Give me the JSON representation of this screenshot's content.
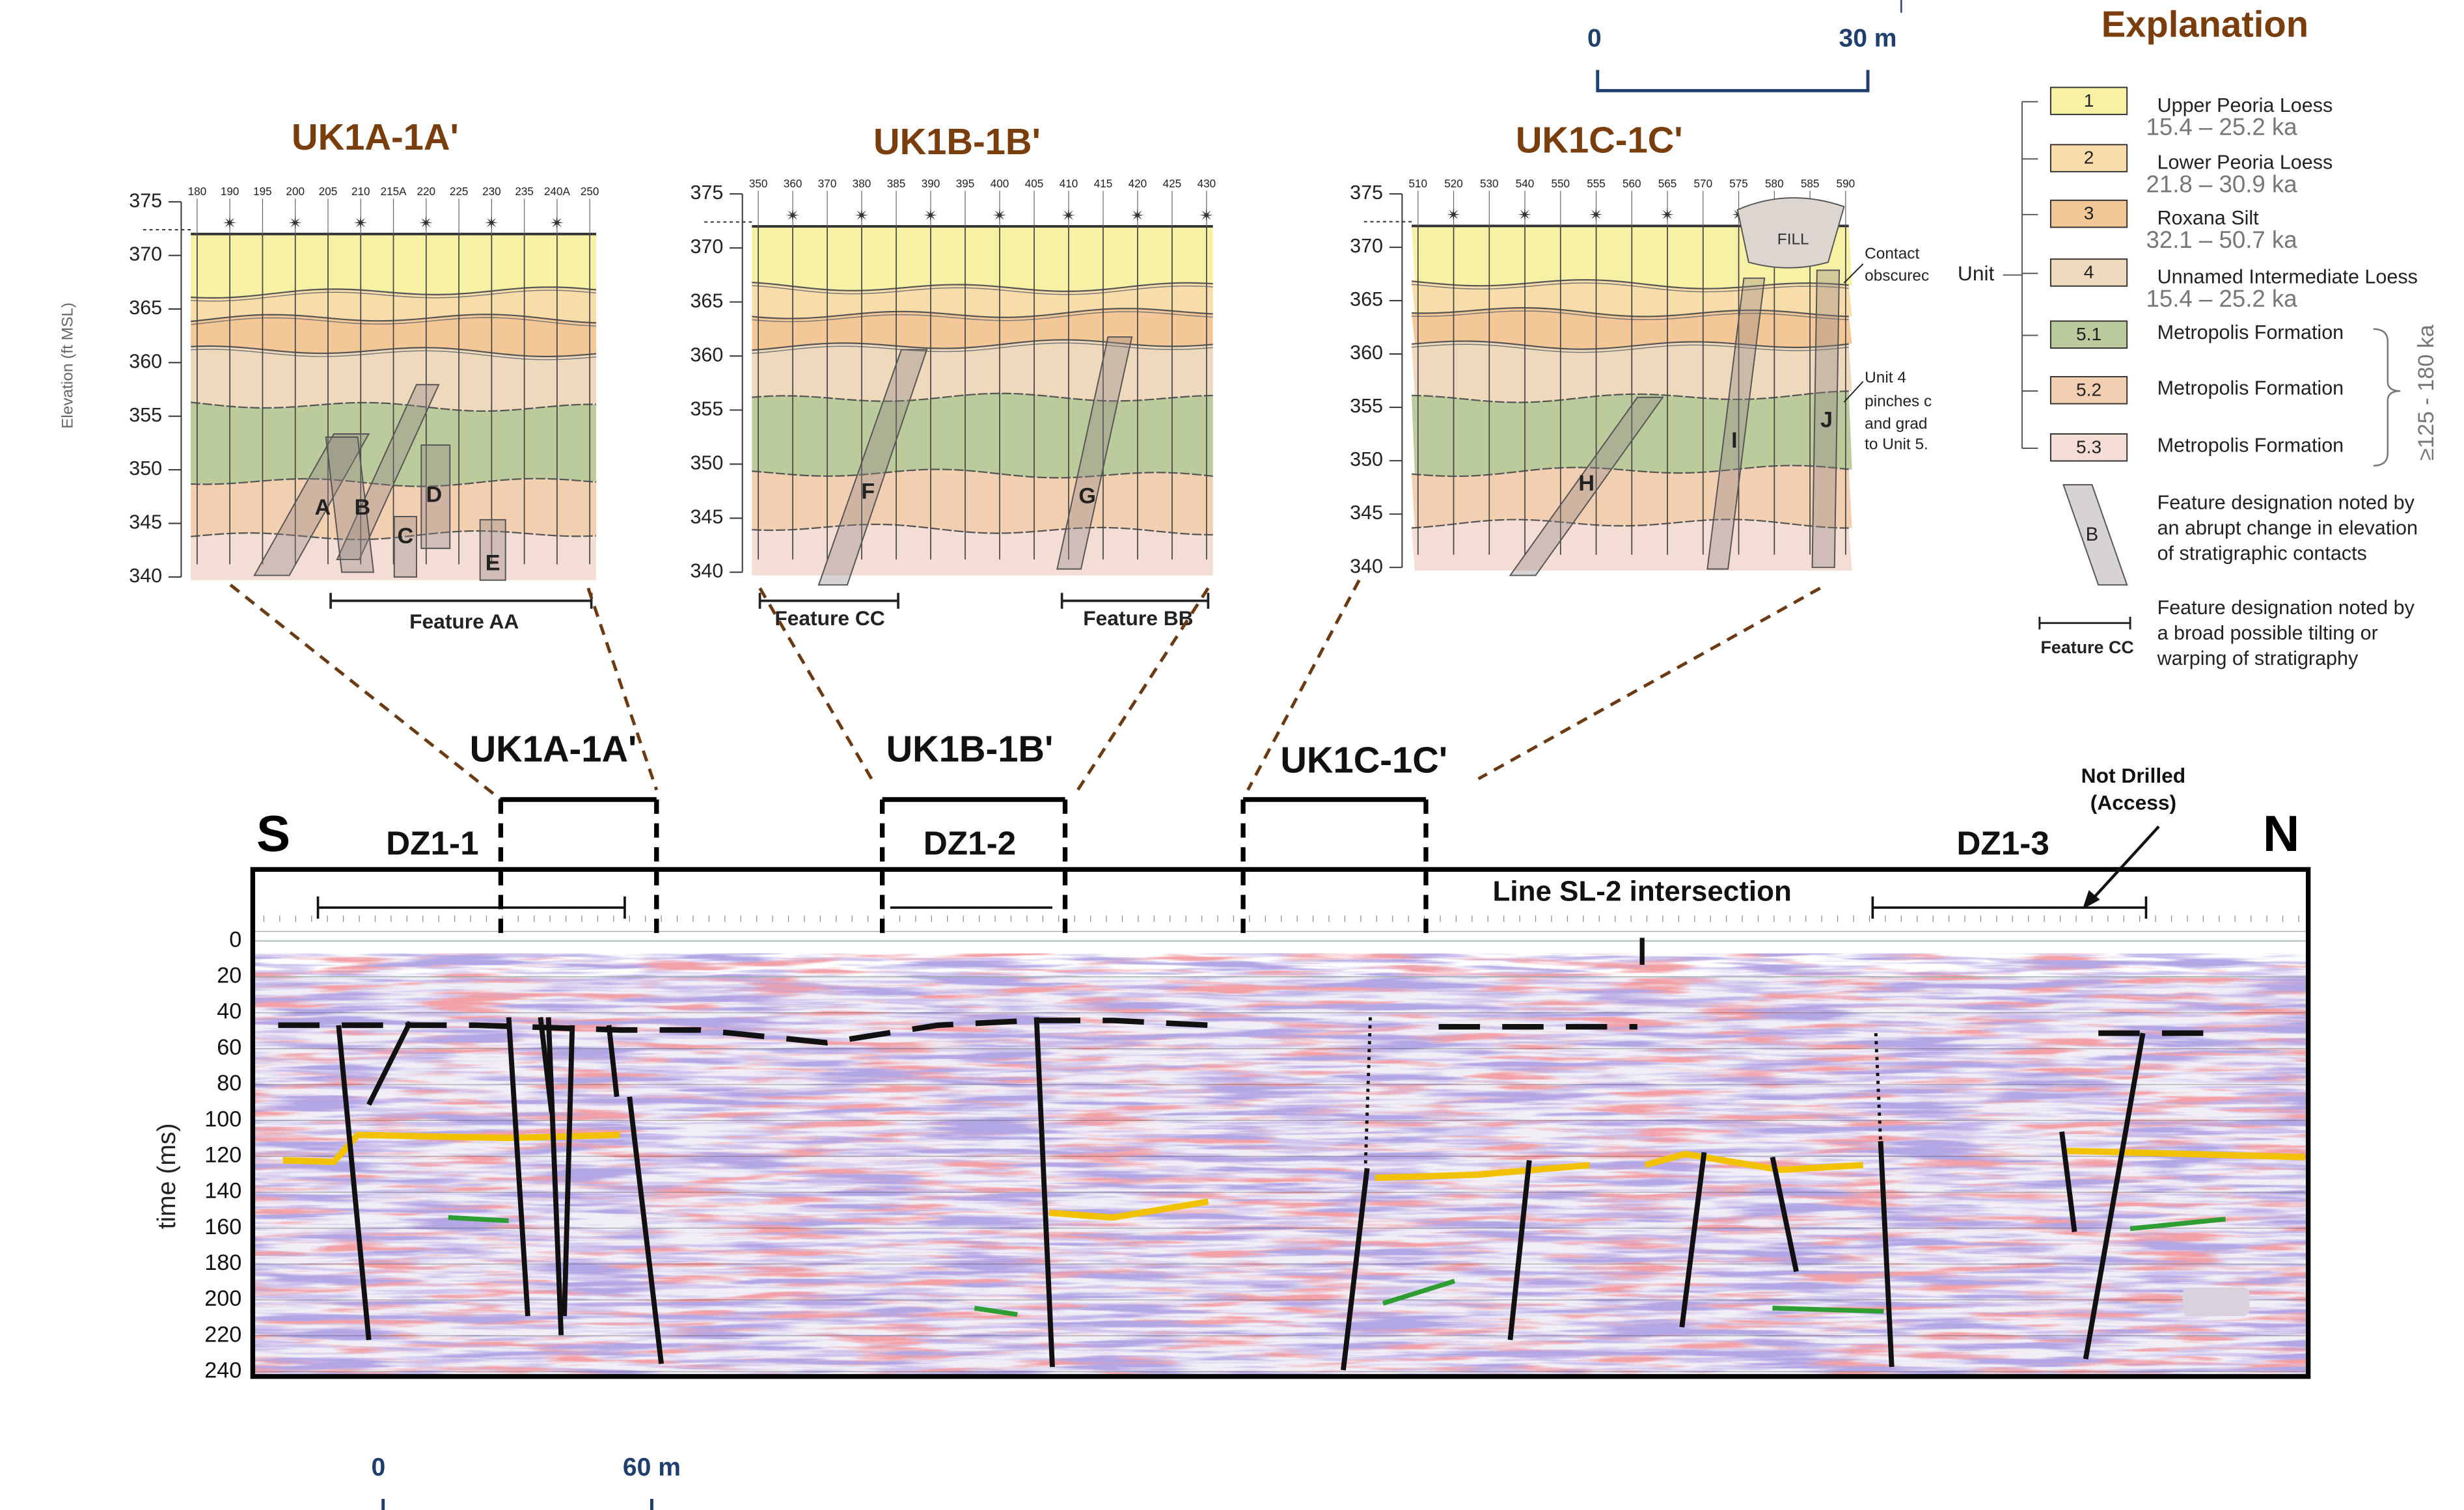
{
  "panels": [
    {
      "title": "UK1A-1A'",
      "y_label": "Elevation (ft MSL)",
      "elevation_ticks": [
        "375",
        "370",
        "365",
        "360",
        "355",
        "350",
        "345",
        "340"
      ],
      "stations": [
        "180",
        "190",
        "195",
        "200",
        "205",
        "210",
        "215A",
        "220",
        "225",
        "230",
        "235",
        "240A",
        "250"
      ],
      "features": [
        "A",
        "B",
        "C",
        "D",
        "E"
      ],
      "feature_groups": [
        "Feature AA"
      ]
    },
    {
      "title": "UK1B-1B'",
      "elevation_ticks": [
        "375",
        "370",
        "365",
        "360",
        "355",
        "350",
        "345",
        "340"
      ],
      "stations": [
        "350",
        "360",
        "370",
        "380",
        "385",
        "390",
        "395",
        "400",
        "405",
        "410",
        "415",
        "420",
        "425",
        "430"
      ],
      "features": [
        "F",
        "G"
      ],
      "feature_groups": [
        "Feature CC",
        "Feature BB"
      ]
    },
    {
      "title": "UK1C-1C'",
      "elevation_ticks": [
        "375",
        "370",
        "365",
        "360",
        "355",
        "350",
        "345",
        "340"
      ],
      "stations": [
        "510",
        "520",
        "530",
        "540",
        "550",
        "555",
        "560",
        "565",
        "570",
        "575",
        "580",
        "585",
        "590"
      ],
      "features": [
        "H",
        "I",
        "J"
      ],
      "feature_groups": [],
      "fill": "FILL",
      "notes": [
        [
          "Contact",
          "obscurec"
        ],
        [
          "Unit 4",
          "pinches c",
          "and grad",
          "to Unit 5."
        ]
      ]
    }
  ],
  "top_scale": {
    "start": "0",
    "end": "30 m"
  },
  "explanation": {
    "title": "Explanation",
    "unit_label": "Unit",
    "units": [
      {
        "code": "1",
        "name": "Upper Peoria Loess",
        "age": "15.4 – 25.2 ka"
      },
      {
        "code": "2",
        "name": "Lower Peoria Loess",
        "age": "21.8 – 30.9 ka"
      },
      {
        "code": "3",
        "name": "Roxana Silt",
        "age": "32.1 – 50.7 ka"
      },
      {
        "code": "4",
        "name": "Unnamed Intermediate Loess",
        "age": "15.4 – 25.2 ka"
      },
      {
        "code": "5.1",
        "name": "Metropolis Formation"
      },
      {
        "code": "5.2",
        "name": "Metropolis Formation"
      },
      {
        "code": "5.3",
        "name": "Metropolis Formation"
      }
    ],
    "age_bracket": "≥125 - 180 ka",
    "feature_box": {
      "letter": "B",
      "text": [
        "Feature designation noted by",
        "an abrupt change in elevation",
        "of stratigraphic contacts"
      ]
    },
    "feature_bar": {
      "label": "Feature CC",
      "text": [
        "Feature designation noted by",
        "a broad possible tilting or",
        "warping of stratigraphy"
      ]
    }
  },
  "section": {
    "south": "S",
    "north": "N",
    "lines": [
      "UK1A-1A'",
      "UK1B-1B'",
      "UK1C-1C'"
    ],
    "zones": [
      "DZ1-1",
      "DZ1-2",
      "DZ1-3"
    ],
    "intersection": "Line SL-2 intersection",
    "not_drilled": [
      "Not Drilled",
      "(Access)"
    ],
    "y_label": "time (ms)",
    "time_ticks": [
      "0",
      "20",
      "40",
      "60",
      "80",
      "100",
      "120",
      "140",
      "160",
      "180",
      "200",
      "220",
      "240"
    ]
  },
  "bottom_scale": {
    "start": "0",
    "end": "60 m"
  }
}
